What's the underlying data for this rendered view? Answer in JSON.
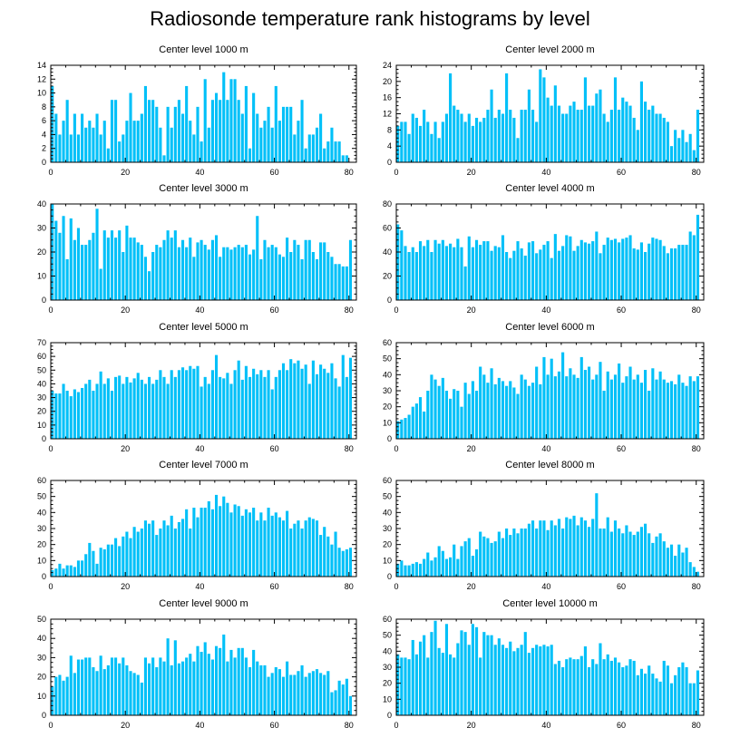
{
  "title": "Radiosonde temperature rank histograms by level",
  "colors": {
    "bar": "#00c0f8",
    "axis": "#000000"
  },
  "chart_data": [
    {
      "type": "bar",
      "title": "Center level 1000 m",
      "xlim": [
        0,
        82
      ],
      "ylim": [
        0,
        14
      ],
      "yticks": [
        0,
        2,
        4,
        6,
        8,
        10,
        12,
        14
      ],
      "xticks": [
        0,
        20,
        40,
        60,
        80
      ],
      "values": [
        11,
        7,
        4,
        6,
        9,
        4,
        7,
        4,
        7,
        5,
        6,
        5,
        7,
        4,
        6,
        2,
        9,
        9,
        3,
        4,
        6,
        10,
        6,
        6,
        7,
        11,
        9,
        9,
        8,
        5,
        1,
        8,
        5,
        8,
        9,
        7,
        11,
        6,
        4,
        8,
        3,
        12,
        5,
        9,
        10,
        9,
        13,
        9,
        12,
        12,
        9,
        7,
        11,
        2,
        10,
        7,
        5,
        6,
        8,
        5,
        11,
        6,
        8,
        8,
        8,
        4,
        6,
        9,
        2,
        4,
        4,
        5,
        7,
        2,
        3,
        5,
        3,
        3,
        1,
        1
      ]
    },
    {
      "type": "bar",
      "title": "Center level 2000 m",
      "xlim": [
        0,
        82
      ],
      "ylim": [
        0,
        24
      ],
      "yticks": [
        0,
        4,
        8,
        12,
        16,
        20,
        24
      ],
      "xticks": [
        0,
        20,
        40,
        60,
        80
      ],
      "values": [
        9,
        10,
        10,
        7,
        12,
        11,
        9,
        13,
        10,
        7,
        10,
        6,
        10,
        12,
        22,
        14,
        13,
        12,
        10,
        12,
        9,
        11,
        10,
        11,
        13,
        18,
        11,
        13,
        12,
        22,
        13,
        11,
        6,
        13,
        13,
        18,
        13,
        10,
        23,
        21,
        16,
        14,
        19,
        14,
        12,
        12,
        14,
        15,
        13,
        13,
        21,
        14,
        14,
        17,
        18,
        12,
        10,
        13,
        21,
        13,
        16,
        15,
        14,
        11,
        8,
        20,
        15,
        13,
        14,
        12,
        12,
        11,
        10,
        4,
        8,
        6,
        8,
        5,
        7,
        3,
        13
      ]
    },
    {
      "type": "bar",
      "title": "Center level 3000 m",
      "xlim": [
        0,
        82
      ],
      "ylim": [
        0,
        40
      ],
      "yticks": [
        0,
        10,
        20,
        30,
        40
      ],
      "xticks": [
        0,
        20,
        40,
        60,
        80
      ],
      "values": [
        40,
        33,
        28,
        35,
        17,
        34,
        25,
        30,
        23,
        23,
        25,
        28,
        38,
        13,
        29,
        26,
        29,
        26,
        29,
        20,
        31,
        26,
        26,
        24,
        23,
        18,
        12,
        20,
        23,
        22,
        25,
        29,
        26,
        29,
        22,
        25,
        22,
        26,
        18,
        24,
        25,
        23,
        21,
        25,
        27,
        18,
        22,
        22,
        21,
        22,
        23,
        22,
        23,
        19,
        21,
        35,
        17,
        25,
        22,
        23,
        22,
        19,
        18,
        26,
        20,
        25,
        23,
        17,
        25,
        25,
        20,
        17,
        24,
        24,
        20,
        18,
        15,
        15,
        14,
        14,
        25
      ]
    },
    {
      "type": "bar",
      "title": "Center level 4000 m",
      "xlim": [
        0,
        82
      ],
      "ylim": [
        0,
        80
      ],
      "yticks": [
        0,
        20,
        40,
        60,
        80
      ],
      "xticks": [
        0,
        20,
        40,
        60,
        80
      ],
      "values": [
        63,
        58,
        45,
        40,
        44,
        40,
        49,
        45,
        50,
        40,
        50,
        47,
        50,
        45,
        47,
        44,
        51,
        44,
        28,
        53,
        44,
        50,
        46,
        49,
        49,
        41,
        45,
        44,
        54,
        40,
        35,
        41,
        49,
        43,
        37,
        48,
        49,
        39,
        42,
        46,
        49,
        35,
        55,
        41,
        45,
        54,
        53,
        41,
        45,
        50,
        48,
        47,
        49,
        57,
        39,
        46,
        52,
        50,
        51,
        48,
        51,
        52,
        54,
        43,
        42,
        48,
        40,
        47,
        52,
        51,
        50,
        45,
        39,
        43,
        43,
        46,
        46,
        46,
        57,
        54,
        71
      ]
    },
    {
      "type": "bar",
      "title": "Center level 5000 m",
      "xlim": [
        0,
        82
      ],
      "ylim": [
        0,
        70
      ],
      "yticks": [
        0,
        10,
        20,
        30,
        40,
        50,
        60,
        70
      ],
      "xticks": [
        0,
        20,
        40,
        60,
        80
      ],
      "values": [
        35,
        33,
        33,
        40,
        35,
        31,
        36,
        34,
        37,
        40,
        43,
        35,
        40,
        49,
        40,
        44,
        35,
        45,
        46,
        40,
        45,
        41,
        44,
        48,
        43,
        40,
        45,
        40,
        43,
        50,
        45,
        40,
        50,
        45,
        50,
        52,
        50,
        53,
        51,
        53,
        38,
        45,
        40,
        50,
        61,
        45,
        44,
        48,
        40,
        50,
        57,
        43,
        53,
        45,
        51,
        47,
        50,
        45,
        50,
        36,
        45,
        50,
        55,
        50,
        58,
        55,
        57,
        51,
        54,
        40,
        57,
        47,
        54,
        51,
        48,
        55,
        44,
        38,
        61,
        45,
        59
      ]
    },
    {
      "type": "bar",
      "title": "Center level 6000 m",
      "xlim": [
        0,
        82
      ],
      "ylim": [
        0,
        60
      ],
      "yticks": [
        0,
        10,
        20,
        30,
        40,
        50,
        60
      ],
      "xticks": [
        0,
        20,
        40,
        60,
        80
      ],
      "values": [
        11,
        12,
        13,
        15,
        20,
        22,
        26,
        17,
        30,
        40,
        37,
        33,
        38,
        30,
        25,
        31,
        30,
        20,
        35,
        28,
        36,
        30,
        45,
        40,
        35,
        44,
        34,
        38,
        36,
        33,
        36,
        32,
        28,
        40,
        37,
        33,
        35,
        45,
        34,
        51,
        40,
        50,
        39,
        42,
        54,
        39,
        44,
        40,
        38,
        51,
        43,
        45,
        37,
        40,
        48,
        30,
        42,
        37,
        40,
        47,
        35,
        39,
        45,
        37,
        40,
        35,
        43,
        30,
        44,
        37,
        42,
        37,
        35,
        36,
        34,
        40,
        35,
        33,
        39,
        36,
        39
      ]
    },
    {
      "type": "bar",
      "title": "Center level 7000 m",
      "xlim": [
        0,
        82
      ],
      "ylim": [
        0,
        60
      ],
      "yticks": [
        0,
        10,
        20,
        30,
        40,
        50,
        60
      ],
      "xticks": [
        0,
        20,
        40,
        60,
        80
      ],
      "values": [
        4,
        5,
        8,
        5,
        7,
        7,
        6,
        10,
        10,
        14,
        21,
        16,
        8,
        18,
        17,
        20,
        20,
        24,
        19,
        25,
        28,
        24,
        31,
        28,
        30,
        35,
        33,
        35,
        26,
        30,
        35,
        32,
        38,
        30,
        34,
        36,
        42,
        30,
        43,
        37,
        43,
        43,
        47,
        42,
        51,
        44,
        50,
        46,
        40,
        45,
        44,
        38,
        42,
        40,
        43,
        35,
        40,
        35,
        43,
        38,
        40,
        37,
        35,
        41,
        30,
        33,
        35,
        30,
        35,
        37,
        36,
        35,
        26,
        31,
        25,
        20,
        28,
        18,
        16,
        17,
        18
      ]
    },
    {
      "type": "bar",
      "title": "Center level 8000 m",
      "xlim": [
        0,
        82
      ],
      "ylim": [
        0,
        60
      ],
      "yticks": [
        0,
        10,
        20,
        30,
        40,
        50,
        60
      ],
      "xticks": [
        0,
        20,
        40,
        60,
        80
      ],
      "values": [
        8,
        10,
        7,
        7,
        8,
        9,
        8,
        11,
        15,
        10,
        12,
        19,
        16,
        11,
        12,
        20,
        11,
        19,
        22,
        24,
        13,
        17,
        28,
        25,
        24,
        21,
        22,
        28,
        24,
        30,
        26,
        30,
        27,
        30,
        30,
        33,
        35,
        30,
        35,
        35,
        29,
        35,
        32,
        36,
        30,
        37,
        36,
        38,
        32,
        37,
        35,
        31,
        36,
        52,
        30,
        30,
        37,
        28,
        35,
        30,
        27,
        32,
        28,
        26,
        28,
        31,
        33,
        27,
        21,
        25,
        27,
        22,
        18,
        20,
        13,
        20,
        15,
        18,
        9,
        6,
        3
      ]
    },
    {
      "type": "bar",
      "title": "Center level 9000 m",
      "xlim": [
        0,
        82
      ],
      "ylim": [
        0,
        50
      ],
      "yticks": [
        0,
        10,
        20,
        30,
        40,
        50
      ],
      "xticks": [
        0,
        20,
        40,
        60,
        80
      ],
      "values": [
        15,
        20,
        21,
        18,
        20,
        31,
        22,
        29,
        29,
        30,
        30,
        25,
        23,
        31,
        24,
        26,
        30,
        30,
        27,
        30,
        26,
        23,
        22,
        21,
        17,
        30,
        27,
        30,
        25,
        30,
        28,
        40,
        26,
        39,
        27,
        28,
        30,
        32,
        28,
        36,
        33,
        38,
        32,
        29,
        36,
        35,
        42,
        28,
        34,
        30,
        35,
        35,
        30,
        25,
        34,
        28,
        26,
        26,
        20,
        22,
        25,
        24,
        20,
        28,
        21,
        21,
        23,
        26,
        20,
        22,
        23,
        24,
        22,
        21,
        23,
        12,
        13,
        18,
        16,
        19,
        10
      ]
    },
    {
      "type": "bar",
      "title": "Center level 10000 m",
      "xlim": [
        0,
        82
      ],
      "ylim": [
        0,
        60
      ],
      "yticks": [
        0,
        10,
        20,
        30,
        40,
        50,
        60
      ],
      "xticks": [
        0,
        20,
        40,
        60,
        80
      ],
      "values": [
        38,
        36,
        36,
        35,
        47,
        38,
        46,
        50,
        36,
        52,
        59,
        42,
        39,
        57,
        38,
        36,
        45,
        53,
        52,
        44,
        57,
        55,
        36,
        52,
        50,
        50,
        44,
        48,
        44,
        42,
        46,
        40,
        42,
        44,
        52,
        39,
        42,
        44,
        43,
        44,
        43,
        44,
        32,
        34,
        30,
        35,
        36,
        35,
        35,
        37,
        43,
        30,
        35,
        32,
        45,
        35,
        38,
        34,
        36,
        33,
        30,
        31,
        35,
        34,
        25,
        29,
        26,
        31,
        26,
        23,
        21,
        34,
        31,
        20,
        25,
        30,
        33,
        30,
        20,
        20,
        28
      ]
    }
  ]
}
